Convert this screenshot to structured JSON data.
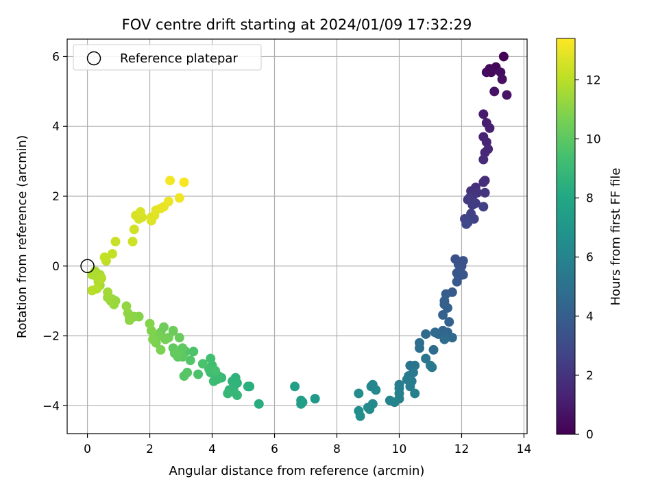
{
  "chart_data": {
    "type": "scatter",
    "title": "FOV centre drift starting at 2024/01/09 17:32:29",
    "xlabel": "Angular distance from reference (arcmin)",
    "ylabel": "Rotation from reference (arcmin)",
    "xlim": [
      -0.65,
      14.1
    ],
    "ylim": [
      -4.8,
      6.5
    ],
    "xticks": [
      0,
      2,
      4,
      6,
      8,
      10,
      12,
      14
    ],
    "yticks": [
      -4,
      -2,
      0,
      2,
      4,
      6
    ],
    "grid": true,
    "legend": {
      "placement": "top-left",
      "entries": [
        "Reference platepar"
      ]
    },
    "reference_point": {
      "x": 0,
      "y": 0,
      "label": "Reference platepar"
    },
    "colorbar": {
      "label": "Hours from first FF file",
      "range": [
        0,
        13.4
      ],
      "ticks": [
        0,
        2,
        4,
        6,
        8,
        10,
        12
      ],
      "colormap": "viridis"
    },
    "points": [
      [
        13.35,
        6.0,
        0.1
      ],
      [
        13.1,
        5.7,
        0.2
      ],
      [
        12.9,
        5.65,
        0.3
      ],
      [
        12.95,
        5.55,
        0.35
      ],
      [
        12.8,
        5.55,
        0.4
      ],
      [
        13.25,
        5.55,
        0.45
      ],
      [
        13.3,
        5.35,
        0.55
      ],
      [
        13.05,
        5.0,
        0.65
      ],
      [
        13.45,
        4.9,
        0.7
      ],
      [
        12.7,
        4.35,
        1.0
      ],
      [
        12.8,
        4.1,
        1.1
      ],
      [
        12.9,
        3.95,
        1.2
      ],
      [
        12.7,
        3.7,
        1.3
      ],
      [
        12.8,
        3.55,
        1.35
      ],
      [
        12.85,
        3.35,
        1.45
      ],
      [
        12.75,
        3.25,
        1.5
      ],
      [
        12.7,
        3.05,
        1.6
      ],
      [
        12.75,
        2.45,
        1.7
      ],
      [
        12.7,
        2.4,
        1.75
      ],
      [
        12.45,
        2.25,
        1.8
      ],
      [
        12.3,
        2.15,
        1.85
      ],
      [
        12.5,
        2.1,
        1.95
      ],
      [
        12.75,
        2.1,
        2.0
      ],
      [
        12.35,
        2.0,
        2.1
      ],
      [
        12.2,
        1.9,
        2.2
      ],
      [
        12.25,
        1.95,
        2.25
      ],
      [
        12.45,
        1.8,
        2.3
      ],
      [
        12.35,
        1.75,
        2.4
      ],
      [
        12.7,
        1.7,
        2.45
      ],
      [
        12.3,
        1.5,
        2.55
      ],
      [
        12.4,
        1.35,
        2.6
      ],
      [
        12.1,
        1.35,
        2.7
      ],
      [
        12.2,
        1.25,
        2.8
      ],
      [
        12.15,
        1.2,
        2.9
      ],
      [
        11.8,
        0.2,
        3.3
      ],
      [
        12.05,
        0.15,
        3.35
      ],
      [
        11.9,
        0.05,
        3.4
      ],
      [
        12.0,
        0.0,
        3.45
      ],
      [
        11.95,
        -0.1,
        3.5
      ],
      [
        11.85,
        -0.2,
        3.55
      ],
      [
        12.05,
        -0.25,
        3.6
      ],
      [
        11.9,
        -0.3,
        3.65
      ],
      [
        11.85,
        -0.45,
        3.7
      ],
      [
        11.7,
        -0.75,
        3.85
      ],
      [
        11.5,
        -0.8,
        3.9
      ],
      [
        11.45,
        -1.0,
        4.0
      ],
      [
        11.45,
        -1.1,
        4.05
      ],
      [
        11.55,
        -1.2,
        4.1
      ],
      [
        11.4,
        -1.4,
        4.2
      ],
      [
        11.6,
        -1.6,
        4.25
      ],
      [
        11.4,
        -1.85,
        4.35
      ],
      [
        11.55,
        -1.9,
        4.4
      ],
      [
        11.25,
        -1.95,
        4.45
      ],
      [
        11.5,
        -2.05,
        4.5
      ],
      [
        11.7,
        -2.05,
        4.55
      ],
      [
        10.85,
        -1.95,
        4.6
      ],
      [
        11.15,
        -1.9,
        4.65
      ],
      [
        11.45,
        -2.1,
        4.7
      ],
      [
        11.1,
        -2.4,
        4.75
      ],
      [
        10.65,
        -2.2,
        4.85
      ],
      [
        10.65,
        -2.35,
        4.9
      ],
      [
        10.5,
        -2.85,
        5.1
      ],
      [
        10.35,
        -2.85,
        5.15
      ],
      [
        10.85,
        -2.65,
        5.2
      ],
      [
        11.05,
        -2.9,
        5.3
      ],
      [
        11.0,
        -2.85,
        5.35
      ],
      [
        10.45,
        -3.05,
        5.4
      ],
      [
        10.3,
        -3.15,
        5.45
      ],
      [
        10.25,
        -3.25,
        5.5
      ],
      [
        10.4,
        -3.3,
        5.55
      ],
      [
        10.0,
        -3.4,
        5.6
      ],
      [
        10.0,
        -3.5,
        5.65
      ],
      [
        10.35,
        -3.45,
        5.7
      ],
      [
        10.5,
        -3.65,
        5.75
      ],
      [
        10.0,
        -3.65,
        5.8
      ],
      [
        10.0,
        -3.8,
        5.85
      ],
      [
        9.7,
        -3.85,
        5.95
      ],
      [
        9.85,
        -3.9,
        6.0
      ],
      [
        9.15,
        -3.4,
        6.1
      ],
      [
        9.1,
        -3.45,
        6.15
      ],
      [
        9.25,
        -3.55,
        6.2
      ],
      [
        9.15,
        -3.95,
        6.3
      ],
      [
        9.0,
        -4.05,
        6.35
      ],
      [
        9.05,
        -4.1,
        6.4
      ],
      [
        8.7,
        -3.65,
        6.5
      ],
      [
        8.7,
        -4.15,
        6.55
      ],
      [
        8.75,
        -4.3,
        6.6
      ],
      [
        7.3,
        -3.8,
        7.2
      ],
      [
        6.85,
        -3.85,
        7.4
      ],
      [
        6.85,
        -3.95,
        7.45
      ],
      [
        6.9,
        -3.9,
        7.5
      ],
      [
        6.65,
        -3.45,
        7.6
      ],
      [
        5.5,
        -3.95,
        8.3
      ],
      [
        5.2,
        -3.45,
        8.4
      ],
      [
        5.15,
        -3.45,
        8.45
      ],
      [
        4.75,
        -3.2,
        8.55
      ],
      [
        4.65,
        -3.3,
        8.6
      ],
      [
        4.8,
        -3.35,
        8.65
      ],
      [
        4.7,
        -3.45,
        8.7
      ],
      [
        4.55,
        -3.55,
        8.75
      ],
      [
        4.7,
        -3.6,
        8.8
      ],
      [
        4.8,
        -3.7,
        8.85
      ],
      [
        4.5,
        -3.65,
        8.9
      ],
      [
        4.3,
        -3.2,
        9.0
      ],
      [
        4.2,
        -3.15,
        9.05
      ],
      [
        4.15,
        -3.25,
        9.1
      ],
      [
        4.05,
        -3.3,
        9.15
      ],
      [
        3.95,
        -3.05,
        9.2
      ],
      [
        4.0,
        -2.85,
        9.25
      ],
      [
        3.95,
        -2.65,
        9.3
      ],
      [
        3.9,
        -2.95,
        9.35
      ],
      [
        4.1,
        -3.0,
        9.4
      ],
      [
        3.7,
        -2.8,
        9.5
      ],
      [
        3.55,
        -3.1,
        9.55
      ],
      [
        3.4,
        -2.45,
        9.6
      ],
      [
        3.15,
        -2.45,
        9.7
      ],
      [
        3.3,
        -2.7,
        9.75
      ],
      [
        3.2,
        -3.05,
        9.8
      ],
      [
        3.1,
        -3.15,
        9.85
      ],
      [
        2.9,
        -2.6,
        9.95
      ],
      [
        3.05,
        -2.6,
        10.0
      ],
      [
        3.05,
        -2.35,
        10.05
      ],
      [
        2.75,
        -2.35,
        10.1
      ],
      [
        2.8,
        -2.5,
        10.15
      ],
      [
        2.9,
        -2.55,
        10.2
      ],
      [
        2.95,
        -2.05,
        10.3
      ],
      [
        2.75,
        -1.85,
        10.35
      ],
      [
        2.45,
        -1.75,
        10.4
      ],
      [
        2.35,
        -1.9,
        10.45
      ],
      [
        2.6,
        -2.05,
        10.5
      ],
      [
        2.5,
        -2.1,
        10.55
      ],
      [
        2.3,
        -2.0,
        10.6
      ],
      [
        2.2,
        -2.05,
        10.65
      ],
      [
        2.2,
        -2.2,
        10.7
      ],
      [
        2.35,
        -2.4,
        10.75
      ],
      [
        2.1,
        -2.1,
        10.8
      ],
      [
        2.05,
        -1.85,
        10.85
      ],
      [
        2.0,
        -1.65,
        10.9
      ],
      [
        1.65,
        -1.45,
        10.95
      ],
      [
        1.5,
        -1.45,
        11.0
      ],
      [
        1.35,
        -1.5,
        11.05
      ],
      [
        1.35,
        -1.55,
        11.1
      ],
      [
        1.3,
        -1.35,
        11.15
      ],
      [
        1.25,
        -1.15,
        11.2
      ],
      [
        0.9,
        -1.0,
        11.25
      ],
      [
        0.8,
        -0.95,
        11.3
      ],
      [
        0.85,
        -1.1,
        11.35
      ],
      [
        0.75,
        -1.0,
        11.4
      ],
      [
        0.65,
        -0.9,
        11.45
      ],
      [
        0.65,
        -0.75,
        11.5
      ],
      [
        0.4,
        -0.55,
        11.55
      ],
      [
        0.3,
        -0.3,
        11.6
      ],
      [
        0.25,
        -0.15,
        11.65
      ],
      [
        0.4,
        -0.25,
        11.7
      ],
      [
        0.15,
        -0.25,
        11.75
      ],
      [
        0.35,
        -0.45,
        11.8
      ],
      [
        0.45,
        -0.35,
        11.85
      ],
      [
        0.3,
        -0.65,
        11.9
      ],
      [
        0.15,
        -0.7,
        11.95
      ],
      [
        0.6,
        0.15,
        12.1
      ],
      [
        0.55,
        0.25,
        12.15
      ],
      [
        0.8,
        0.35,
        12.2
      ],
      [
        0.9,
        0.7,
        12.3
      ],
      [
        1.45,
        0.7,
        12.4
      ],
      [
        1.5,
        1.05,
        12.45
      ],
      [
        1.65,
        1.35,
        12.5
      ],
      [
        1.75,
        1.4,
        12.55
      ],
      [
        1.55,
        1.45,
        12.6
      ],
      [
        1.7,
        1.55,
        12.65
      ],
      [
        2.05,
        1.3,
        12.7
      ],
      [
        2.05,
        1.4,
        12.75
      ],
      [
        2.15,
        1.45,
        12.8
      ],
      [
        2.2,
        1.6,
        12.85
      ],
      [
        2.35,
        1.65,
        12.9
      ],
      [
        2.45,
        1.7,
        12.95
      ],
      [
        2.6,
        1.85,
        13.0
      ],
      [
        2.95,
        1.95,
        13.1
      ],
      [
        2.65,
        2.45,
        13.2
      ],
      [
        3.1,
        2.4,
        13.3
      ]
    ]
  }
}
